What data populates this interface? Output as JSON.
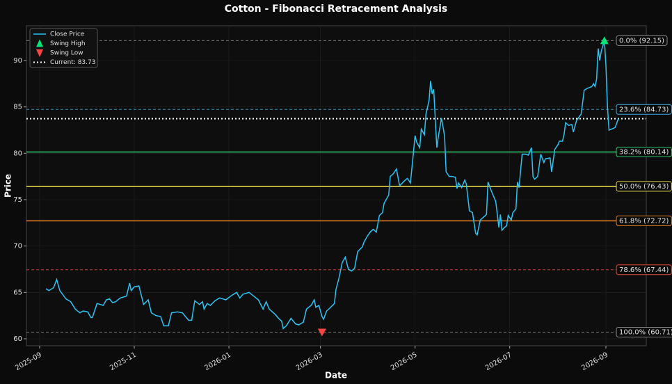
{
  "chart_data": {
    "type": "line",
    "title": "Cotton - Fibonacci Retracement Analysis",
    "xlabel": "Date",
    "ylabel": "Price",
    "x": [
      4,
      6,
      9,
      11,
      13,
      17,
      20,
      23,
      26,
      28,
      31,
      33,
      34,
      37,
      41,
      43,
      45,
      47,
      49,
      52,
      56,
      58,
      59,
      61,
      64,
      67,
      70,
      72,
      75,
      78,
      80,
      83,
      85,
      89,
      92,
      96,
      98,
      100,
      103,
      105,
      106,
      108,
      110,
      113,
      116,
      120,
      124,
      127,
      129,
      131,
      135,
      138,
      141,
      144,
      146,
      148,
      152,
      154,
      156,
      157,
      159,
      162,
      165,
      167,
      170,
      172,
      175,
      177,
      178,
      180,
      182,
      183,
      185,
      187,
      190,
      191,
      193,
      195,
      197,
      199,
      201,
      203,
      205,
      208,
      209,
      211,
      213,
      215,
      217,
      219,
      221,
      222,
      225,
      226,
      228,
      230,
      232,
      235,
      237,
      239,
      242,
      243,
      245,
      246,
      248,
      249,
      251,
      252,
      253,
      254,
      256,
      257,
      259,
      261,
      262,
      264,
      266,
      268,
      269,
      270,
      272,
      274,
      275,
      277,
      279,
      281,
      282,
      284,
      286,
      288,
      289,
      291,
      292,
      294,
      296,
      297,
      298,
      299,
      301,
      302,
      304,
      305,
      307,
      308,
      309,
      311,
      313,
      315,
      317,
      318,
      319,
      321,
      323,
      325,
      326,
      329,
      330,
      332,
      334,
      335,
      337,
      338,
      339,
      341,
      343,
      344,
      346,
      348,
      349,
      351,
      353,
      356,
      357,
      358,
      359,
      360,
      361,
      362,
      364,
      365,
      366,
      367,
      370,
      371,
      373
    ],
    "series": [
      {
        "name": "Close Price",
        "color": "#29c5f6",
        "values": [
          65.4,
          65.2,
          65.5,
          66.4,
          65.2,
          64.3,
          64.0,
          63.2,
          62.8,
          63.0,
          62.9,
          62.3,
          62.3,
          63.8,
          63.6,
          64.2,
          64.3,
          63.9,
          64.0,
          64.4,
          64.6,
          66.0,
          65.2,
          65.6,
          65.7,
          63.7,
          64.2,
          62.8,
          62.5,
          62.4,
          61.4,
          61.4,
          62.8,
          62.9,
          62.8,
          62.0,
          62.0,
          64.1,
          63.7,
          64.0,
          63.2,
          63.8,
          63.6,
          64.1,
          64.4,
          64.2,
          64.7,
          65.0,
          64.4,
          64.8,
          65.0,
          64.6,
          64.2,
          63.2,
          64.0,
          63.2,
          62.6,
          62.2,
          61.9,
          61.1,
          61.4,
          62.2,
          61.6,
          61.5,
          61.8,
          63.2,
          63.6,
          64.2,
          63.4,
          63.6,
          62.4,
          62.1,
          63.0,
          63.3,
          63.8,
          65.3,
          66.6,
          68.2,
          68.8,
          67.5,
          67.3,
          67.6,
          69.4,
          69.9,
          70.4,
          71.0,
          71.5,
          71.8,
          71.5,
          73.3,
          73.6,
          74.6,
          75.5,
          77.5,
          77.8,
          78.3,
          76.5,
          77.0,
          77.3,
          76.8,
          81.9,
          81.2,
          80.6,
          82.6,
          82.0,
          84.2,
          85.7,
          87.8,
          86.4,
          86.9,
          80.6,
          81.8,
          83.8,
          81.9,
          78.0,
          77.5,
          77.5,
          77.4,
          76.2,
          76.8,
          76.3,
          77.1,
          76.7,
          73.8,
          73.6,
          71.4,
          71.2,
          72.8,
          73.1,
          73.4,
          76.9,
          76.0,
          75.6,
          74.8,
          72.0,
          73.4,
          71.7,
          71.9,
          72.2,
          73.3,
          72.8,
          73.6,
          74.0,
          76.9,
          76.3,
          79.9,
          79.9,
          79.8,
          80.6,
          77.5,
          77.2,
          77.5,
          79.9,
          79.0,
          79.4,
          79.5,
          78.0,
          80.4,
          80.9,
          81.3,
          81.3,
          82.0,
          83.3,
          83.0,
          83.1,
          82.3,
          83.5,
          84.0,
          84.2,
          86.8,
          87.0,
          87.2,
          87.5,
          87.2,
          88.0,
          91.3,
          90.0,
          91.0,
          92.15,
          89.5,
          85.0,
          82.5,
          82.7,
          82.8,
          83.73
        ]
      }
    ],
    "swing_high": {
      "name": "Swing High",
      "x": 364,
      "y": 92.15,
      "color": "#00e676"
    },
    "swing_low": {
      "name": "Swing Low",
      "x": 182,
      "y": 60.71,
      "color": "#ff4444"
    },
    "current": {
      "name": "Current: 83.73",
      "value": 83.73,
      "color": "#ffffff"
    },
    "levels": [
      {
        "label": "0.0% (92.15)",
        "value": 92.15,
        "color": "#888888",
        "dashed": true
      },
      {
        "label": "23.6% (84.73)",
        "value": 84.73,
        "color": "#3fa9e0",
        "dashed": true
      },
      {
        "label": "38.2% (80.14)",
        "value": 80.14,
        "color": "#2ecc71",
        "dashed": false
      },
      {
        "label": "50.0% (76.43)",
        "value": 76.43,
        "color": "#e6d84a",
        "dashed": false
      },
      {
        "label": "61.8% (72.72)",
        "value": 72.72,
        "color": "#e67e22",
        "dashed": false
      },
      {
        "label": "78.6% (67.44)",
        "value": 67.44,
        "color": "#e74c3c",
        "dashed": true
      },
      {
        "label": "100.0% (60.71)",
        "value": 60.71,
        "color": "#888888",
        "dashed": true
      }
    ],
    "xlim": [
      -8.5,
      391
    ],
    "ylim": [
      59.25,
      93.75
    ],
    "xticks": [
      {
        "value": 0,
        "label": "2025-09"
      },
      {
        "value": 61,
        "label": "2025-11"
      },
      {
        "value": 122,
        "label": "2026-01"
      },
      {
        "value": 181,
        "label": "2026-03"
      },
      {
        "value": 242,
        "label": "2026-05"
      },
      {
        "value": 303,
        "label": "2026-07"
      },
      {
        "value": 365,
        "label": "2026-09"
      }
    ],
    "yticks": [
      60,
      65,
      70,
      75,
      80,
      85,
      90
    ],
    "grid": true
  }
}
